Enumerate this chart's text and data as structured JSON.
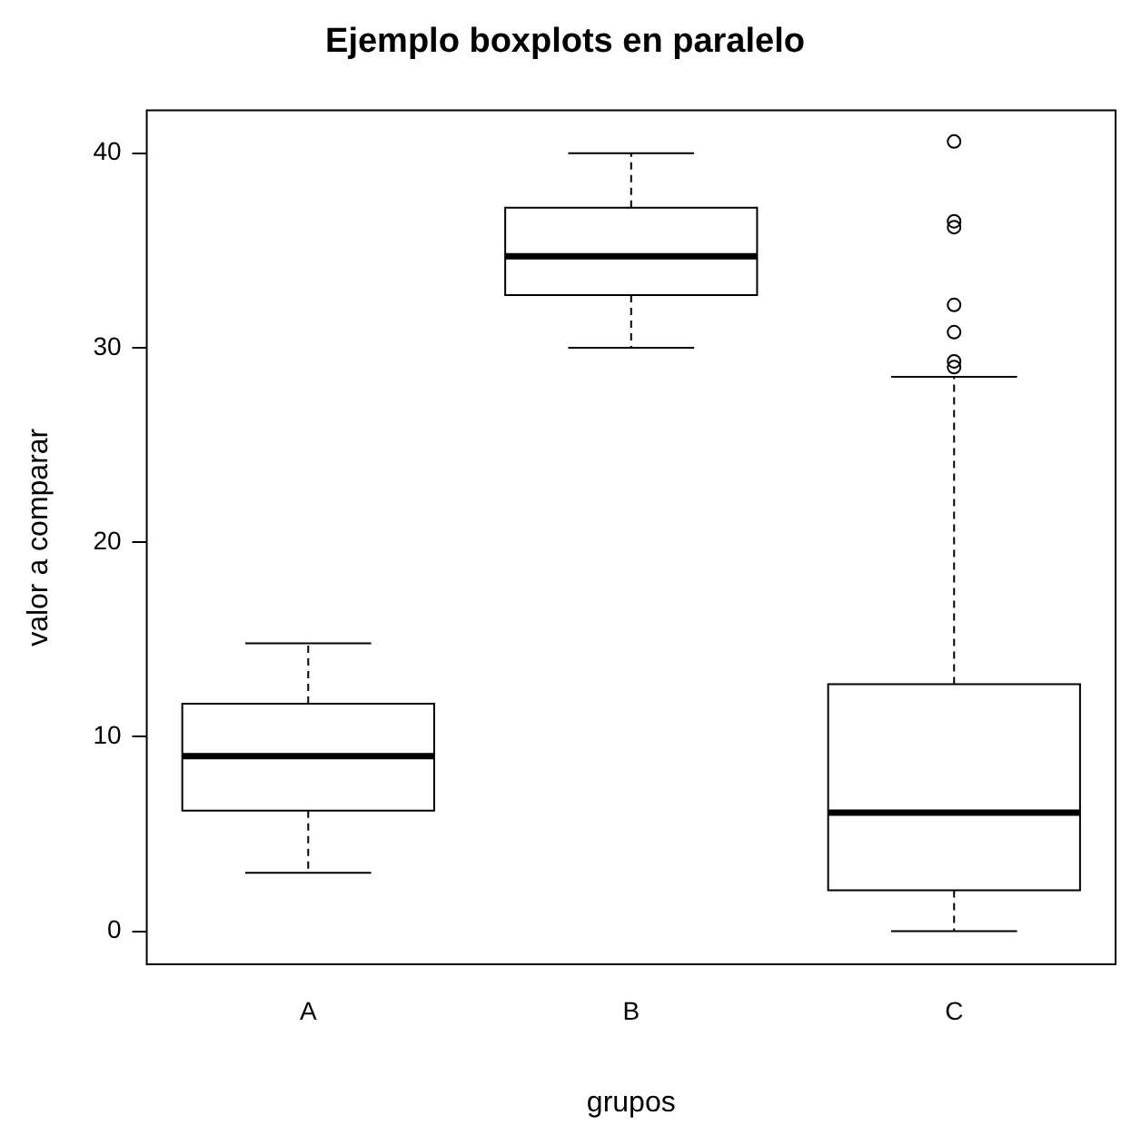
{
  "chart_data": {
    "type": "box",
    "title": "Ejemplo boxplots en paralelo",
    "xlabel": "grupos",
    "ylabel": "valor a comparar",
    "categories": [
      "A",
      "B",
      "C"
    ],
    "boxes": [
      {
        "low": 3.0,
        "q1": 6.2,
        "median": 9.0,
        "q3": 11.7,
        "high": 14.8
      },
      {
        "low": 30.0,
        "q1": 32.7,
        "median": 34.7,
        "q3": 37.2,
        "high": 40.0
      },
      {
        "low": 0.0,
        "q1": 2.1,
        "median": 6.1,
        "q3": 12.7,
        "high": 28.5,
        "outliers": [
          40.6,
          36.5,
          36.2,
          32.2,
          30.8,
          29.3,
          29.0
        ]
      }
    ],
    "ylim": [
      -1.7,
      42.2
    ],
    "yticks": [
      0,
      10,
      20,
      30,
      40
    ]
  }
}
